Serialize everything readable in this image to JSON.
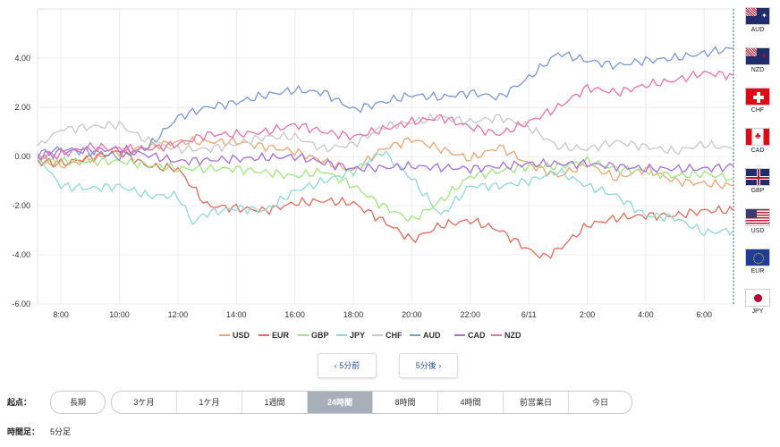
{
  "chart_data": {
    "type": "line",
    "x_ticks": [
      "8:00",
      "10:00",
      "12:00",
      "14:00",
      "16:00",
      "18:00",
      "20:00",
      "22:00",
      "6/11",
      "2:00",
      "4:00",
      "6:00"
    ],
    "x_range": [
      7.2,
      31.0
    ],
    "y_ticks": [
      "4.00",
      "2.00",
      "0.00",
      "-2.00",
      "-4.00",
      "-6.00"
    ],
    "ylim": [
      -6,
      6
    ],
    "grid": true,
    "series": [
      {
        "name": "USD",
        "color": "#f0a470",
        "values": [
          [
            7.2,
            0.0
          ],
          [
            8,
            -0.4
          ],
          [
            10,
            0.2
          ],
          [
            12,
            0.6
          ],
          [
            14,
            0.6
          ],
          [
            16,
            0.2
          ],
          [
            18,
            -0.6
          ],
          [
            19,
            0.3
          ],
          [
            20,
            0.7
          ],
          [
            21,
            0.3
          ],
          [
            22,
            -0.1
          ],
          [
            23,
            0.4
          ],
          [
            24,
            -0.3
          ],
          [
            25,
            -0.8
          ],
          [
            26,
            -0.3
          ],
          [
            27,
            -0.9
          ],
          [
            28,
            -0.5
          ],
          [
            29,
            -1.0
          ],
          [
            30,
            -1.1
          ],
          [
            31,
            -1.2
          ]
        ]
      },
      {
        "name": "EUR",
        "color": "#e8695a",
        "values": [
          [
            7.2,
            -0.2
          ],
          [
            8,
            -0.3
          ],
          [
            10,
            0.2
          ],
          [
            11,
            -0.4
          ],
          [
            12,
            -0.5
          ],
          [
            13,
            -2.0
          ],
          [
            14,
            -2.1
          ],
          [
            15,
            -2.2
          ],
          [
            16,
            -1.9
          ],
          [
            17,
            -1.8
          ],
          [
            18,
            -1.9
          ],
          [
            19,
            -2.6
          ],
          [
            20,
            -3.4
          ],
          [
            21,
            -2.8
          ],
          [
            22,
            -2.6
          ],
          [
            23,
            -3.0
          ],
          [
            24,
            -3.8
          ],
          [
            24.5,
            -4.1
          ],
          [
            25,
            -3.8
          ],
          [
            26,
            -2.8
          ],
          [
            27,
            -2.5
          ],
          [
            28,
            -2.4
          ],
          [
            29,
            -2.4
          ],
          [
            30,
            -2.2
          ],
          [
            31,
            -2.2
          ]
        ]
      },
      {
        "name": "GBP",
        "color": "#9ee87a",
        "values": [
          [
            7.2,
            -0.2
          ],
          [
            8,
            -0.2
          ],
          [
            10,
            -0.2
          ],
          [
            12,
            -0.5
          ],
          [
            14,
            -0.5
          ],
          [
            16,
            -0.8
          ],
          [
            17,
            -0.6
          ],
          [
            18,
            -1.2
          ],
          [
            19,
            -2.0
          ],
          [
            20,
            -2.6
          ],
          [
            21,
            -1.8
          ],
          [
            22,
            -0.8
          ],
          [
            23,
            -0.6
          ],
          [
            24,
            -0.4
          ],
          [
            25,
            -0.4
          ],
          [
            26,
            -0.2
          ],
          [
            27,
            -0.5
          ],
          [
            28,
            -0.6
          ],
          [
            29,
            -0.8
          ],
          [
            30,
            -0.7
          ],
          [
            31,
            -0.9
          ]
        ]
      },
      {
        "name": "JPY",
        "color": "#8ddcd0",
        "values": [
          [
            7.2,
            0.0
          ],
          [
            8,
            -1.2
          ],
          [
            9,
            -1.3
          ],
          [
            10,
            -1.2
          ],
          [
            11,
            -1.6
          ],
          [
            12,
            -1.6
          ],
          [
            12.5,
            -2.7
          ],
          [
            13,
            -2.3
          ],
          [
            14,
            -2.1
          ],
          [
            15,
            -2.2
          ],
          [
            16,
            -1.4
          ],
          [
            17,
            -1.0
          ],
          [
            18,
            -0.6
          ],
          [
            19,
            0.2
          ],
          [
            20,
            -0.9
          ],
          [
            21,
            -2.4
          ],
          [
            22,
            -1.2
          ],
          [
            23,
            -1.2
          ],
          [
            24,
            -1.0
          ],
          [
            25,
            -0.6
          ],
          [
            26,
            -1.2
          ],
          [
            27,
            -1.6
          ],
          [
            28,
            -2.4
          ],
          [
            29,
            -2.5
          ],
          [
            30,
            -3.1
          ],
          [
            31,
            -3.0
          ]
        ]
      },
      {
        "name": "CHF",
        "color": "#c8c8c8",
        "values": [
          [
            7.2,
            0.4
          ],
          [
            8,
            1.1
          ],
          [
            9,
            1.2
          ],
          [
            10,
            1.3
          ],
          [
            11,
            0.6
          ],
          [
            12,
            0.3
          ],
          [
            13,
            0.3
          ],
          [
            14,
            0.5
          ],
          [
            15,
            0.8
          ],
          [
            16,
            0.8
          ],
          [
            17,
            0.3
          ],
          [
            18,
            0.5
          ],
          [
            19,
            1.2
          ],
          [
            20,
            1.4
          ],
          [
            21,
            1.6
          ],
          [
            22,
            1.4
          ],
          [
            23,
            1.6
          ],
          [
            24,
            1.2
          ],
          [
            25,
            0.4
          ],
          [
            26,
            0.3
          ],
          [
            27,
            0.6
          ],
          [
            28,
            0.4
          ],
          [
            29,
            0.2
          ],
          [
            30,
            0.5
          ],
          [
            31,
            0.3
          ]
        ]
      },
      {
        "name": "AUD",
        "color": "#7b97d8",
        "values": [
          [
            7.2,
            0.1
          ],
          [
            8,
            0.3
          ],
          [
            9,
            0.2
          ],
          [
            10,
            0.0
          ],
          [
            11,
            0.4
          ],
          [
            12,
            1.6
          ],
          [
            13,
            2.0
          ],
          [
            14,
            2.2
          ],
          [
            15,
            2.5
          ],
          [
            16,
            2.7
          ],
          [
            17,
            2.6
          ],
          [
            18,
            1.9
          ],
          [
            19,
            2.2
          ],
          [
            20,
            2.5
          ],
          [
            21,
            2.4
          ],
          [
            22,
            2.6
          ],
          [
            23,
            2.4
          ],
          [
            24,
            3.2
          ],
          [
            25,
            4.2
          ],
          [
            26,
            3.9
          ],
          [
            27,
            3.7
          ],
          [
            28,
            3.9
          ],
          [
            29,
            4.0
          ],
          [
            30,
            4.2
          ],
          [
            31,
            4.4
          ]
        ]
      },
      {
        "name": "CAD",
        "color": "#a66fe0",
        "values": [
          [
            7.2,
            0.0
          ],
          [
            8,
            0.2
          ],
          [
            10,
            0.3
          ],
          [
            12,
            -0.2
          ],
          [
            14,
            -0.1
          ],
          [
            16,
            0.0
          ],
          [
            18,
            -0.5
          ],
          [
            20,
            -0.4
          ],
          [
            22,
            -0.5
          ],
          [
            24,
            -0.3
          ],
          [
            26,
            -0.3
          ],
          [
            28,
            -0.5
          ],
          [
            30,
            -0.5
          ],
          [
            31,
            -0.4
          ]
        ]
      },
      {
        "name": "NZD",
        "color": "#ee70a8",
        "values": [
          [
            7.2,
            0.0
          ],
          [
            8,
            0.1
          ],
          [
            9,
            0.4
          ],
          [
            10,
            0.3
          ],
          [
            11,
            0.3
          ],
          [
            12,
            0.5
          ],
          [
            13,
            0.9
          ],
          [
            14,
            0.9
          ],
          [
            15,
            1.0
          ],
          [
            16,
            1.3
          ],
          [
            17,
            1.0
          ],
          [
            18,
            0.8
          ],
          [
            19,
            1.1
          ],
          [
            20,
            1.4
          ],
          [
            21,
            1.6
          ],
          [
            22,
            1.2
          ],
          [
            23,
            0.9
          ],
          [
            24,
            1.4
          ],
          [
            25,
            2.0
          ],
          [
            26,
            2.8
          ],
          [
            27,
            2.6
          ],
          [
            28,
            2.9
          ],
          [
            29,
            3.1
          ],
          [
            30,
            3.4
          ],
          [
            31,
            3.3
          ]
        ]
      }
    ]
  },
  "currencies": [
    {
      "code": "AUD",
      "flag": "flag-au-icon"
    },
    {
      "code": "NZD",
      "flag": "flag-nz-icon"
    },
    {
      "code": "CHF",
      "flag": "flag-ch-icon"
    },
    {
      "code": "CAD",
      "flag": "flag-ca-icon"
    },
    {
      "code": "GBP",
      "flag": "flag-gb-icon"
    },
    {
      "code": "USD",
      "flag": "flag-us-icon"
    },
    {
      "code": "EUR",
      "flag": "flag-eu-icon"
    },
    {
      "code": "JPY",
      "flag": "flag-jp-icon"
    }
  ],
  "nav": {
    "prev": "‹ 5分前",
    "next": "5分後 ›"
  },
  "controls": {
    "origin_label": "起点：",
    "long_term": "長期",
    "periods": [
      "3ケ月",
      "1ケ月",
      "1週間",
      "24時間",
      "8時間",
      "4時間",
      "前営業日",
      "今日"
    ],
    "active_period": "24時間",
    "timeframe_label": "時間足：",
    "timeframe_value": "5分足"
  }
}
